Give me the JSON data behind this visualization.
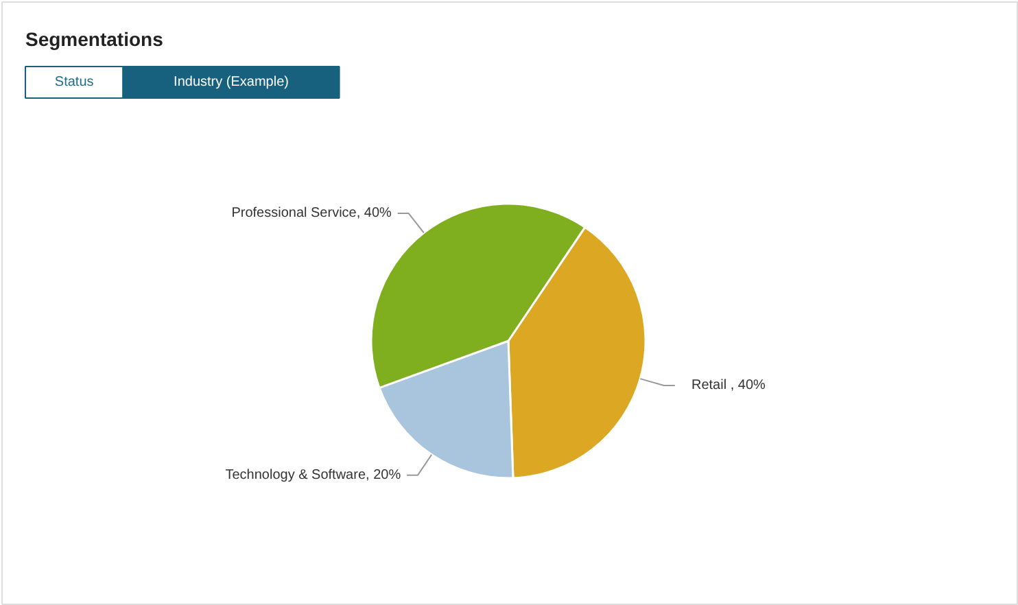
{
  "chart_data": {
    "type": "pie",
    "title": "Segmentations",
    "annotations": [
      "Status",
      "Industry (Example)"
    ],
    "categories": [
      "Retail ",
      "Technology & Software",
      "Professional Service"
    ],
    "values": [
      40,
      20,
      40
    ],
    "colors": [
      "#dca824",
      "#a9c5de",
      "#7fae1e"
    ],
    "value_labels": [
      ", 40%",
      ", 20%",
      ", 40%"
    ]
  }
}
